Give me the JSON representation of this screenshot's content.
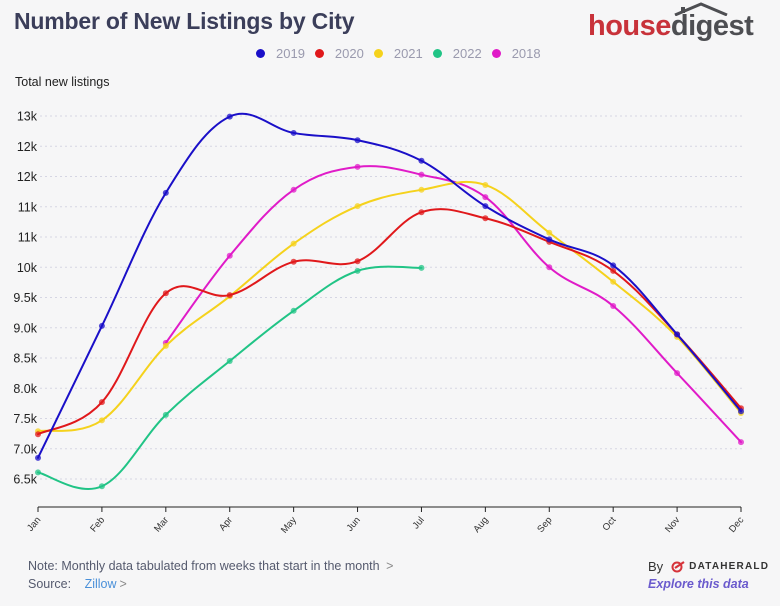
{
  "header": {
    "title": "Number of New Listings by City",
    "logo_part1": "house",
    "logo_part2": "digest"
  },
  "footer": {
    "note": "Note: Monthly data tabulated from weeks that start in the month",
    "note_chevron": ">",
    "source_label": "Source:",
    "source_link": "Zillow",
    "source_chevron": ">",
    "by_label": "By",
    "brand": "DATAHERALD",
    "explore": "Explore this data"
  },
  "chart_data": {
    "type": "line",
    "title": "Number of New Listings by City",
    "xlabel": "",
    "ylabel": "Total new listings",
    "categories": [
      "Jan",
      "Feb",
      "Mar",
      "Apr",
      "May",
      "Jun",
      "Jul",
      "Aug",
      "Sep",
      "Oct",
      "Nov",
      "Dec"
    ],
    "ylim": [
      6000,
      12700
    ],
    "yticks": [
      6500,
      7000,
      7500,
      8000,
      8500,
      9000,
      9500,
      10000,
      10500,
      11000,
      11500,
      12000,
      12500
    ],
    "ytick_labels": [
      "6.5k",
      "7.0k",
      "7.5k",
      "8.0k",
      "8.5k",
      "9.0k",
      "9.5k",
      "10k",
      "11k",
      "11k",
      "12k",
      "12k",
      "13k"
    ],
    "grid": true,
    "legend_position": "top-center",
    "series": [
      {
        "name": "2019",
        "color": "#1a0fc8",
        "values": [
          6850,
          9030,
          11230,
          12490,
          12220,
          12100,
          11760,
          11010,
          10460,
          10030,
          8890,
          7620
        ]
      },
      {
        "name": "2020",
        "color": "#e0181b",
        "values": [
          7240,
          7770,
          9570,
          9540,
          10090,
          10100,
          10910,
          10810,
          10420,
          9940,
          8890,
          7670
        ]
      },
      {
        "name": "2021",
        "color": "#f5d21c",
        "values": [
          7290,
          7470,
          8700,
          9520,
          10390,
          11010,
          11280,
          11360,
          10570,
          9760,
          8850,
          7590
        ]
      },
      {
        "name": "2022",
        "color": "#21c486",
        "values": [
          6610,
          6380,
          7560,
          8450,
          9280,
          9940,
          9990,
          null,
          null,
          null,
          null,
          null
        ]
      },
      {
        "name": "2018",
        "color": "#e01bc8",
        "values": [
          null,
          null,
          8750,
          10190,
          11280,
          11660,
          11530,
          11160,
          10000,
          9360,
          8250,
          7110
        ]
      }
    ]
  }
}
